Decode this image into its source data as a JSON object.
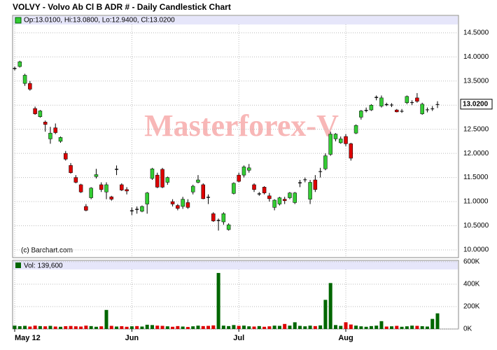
{
  "chart_data": {
    "type": "candlestick",
    "title": "VOLVY - Volvo Ab Cl B ADR # - Daily Candlestick Chart",
    "ohlc_header": "Op:13.0100, Hi:13.0800, Lo:12.9400, Cl:13.0200",
    "volume_header": "Vol: 139,600",
    "watermark": "Masterforex-V",
    "credit": "(c) Barchart.com",
    "last_price": {
      "value": 13.02,
      "label": "13.0200"
    },
    "up_color": "#33cc33",
    "down_color": "#dd0000",
    "volume_up_color": "#006600",
    "categories": [
      "May 12",
      null,
      null,
      null,
      null,
      null,
      null,
      null,
      null,
      null,
      null,
      null,
      null,
      null,
      null,
      null,
      null,
      null,
      null,
      null,
      null,
      null,
      null,
      "Jun",
      null,
      null,
      null,
      null,
      null,
      null,
      null,
      null,
      null,
      null,
      null,
      null,
      null,
      null,
      null,
      null,
      null,
      null,
      null,
      null,
      "Jul",
      null,
      null,
      null,
      null,
      null,
      null,
      null,
      null,
      null,
      null,
      null,
      null,
      null,
      null,
      null,
      null,
      null,
      null,
      null,
      null,
      "Aug",
      null,
      null,
      null,
      null,
      null,
      null,
      null,
      null,
      null,
      null,
      null,
      null,
      null,
      null,
      null,
      null,
      null,
      null
    ],
    "open": [
      13.75,
      13.8,
      13.45,
      13.45,
      12.93,
      12.76,
      12.65,
      12.3,
      12.53,
      12.25,
      12.0,
      11.75,
      11.5,
      11.35,
      10.9,
      11.08,
      11.52,
      11.35,
      11.2,
      11.1,
      11.66,
      11.35,
      11.25,
      10.8,
      10.85,
      10.8,
      10.95,
      11.48,
      11.55,
      11.67,
      11.4,
      11.0,
      10.92,
      10.9,
      10.98,
      11.2,
      11.4,
      11.35,
      11.1,
      10.75,
      10.6,
      10.58,
      10.42,
      11.17,
      11.55,
      11.55,
      11.65,
      11.35,
      11.15,
      11.3,
      11.12,
      10.88,
      10.95,
      11.05,
      11.08,
      10.98,
      11.38,
      11.45,
      11.05,
      11.45,
      11.62,
      11.68,
      11.98,
      12.3,
      12.22,
      12.35,
      12.2,
      12.42,
      12.75,
      12.88,
      12.9,
      13.15,
      12.98,
      13.02,
      13.0,
      12.9,
      12.88,
      13.05,
      13.05,
      13.15,
      12.82,
      12.9,
      12.92,
      13.01
    ],
    "high": [
      13.8,
      13.92,
      13.65,
      13.5,
      12.97,
      12.9,
      12.68,
      12.55,
      12.62,
      12.35,
      12.05,
      11.8,
      11.55,
      11.37,
      10.95,
      11.3,
      11.68,
      11.4,
      11.4,
      11.12,
      11.75,
      11.38,
      11.3,
      10.88,
      10.9,
      10.92,
      11.2,
      11.7,
      11.6,
      11.7,
      11.52,
      11.05,
      10.95,
      11.1,
      11.05,
      11.35,
      11.55,
      11.38,
      11.15,
      10.78,
      10.65,
      10.78,
      10.55,
      11.4,
      11.6,
      11.75,
      11.78,
      11.38,
      11.2,
      11.32,
      11.18,
      11.05,
      11.1,
      11.1,
      11.2,
      11.2,
      11.45,
      11.5,
      11.45,
      11.55,
      11.7,
      12.0,
      12.45,
      12.42,
      12.35,
      12.4,
      12.22,
      12.6,
      12.9,
      12.95,
      13.02,
      13.2,
      13.2,
      13.05,
      13.04,
      12.92,
      12.92,
      13.2,
      13.1,
      13.25,
      13.05,
      12.95,
      12.98,
      13.08
    ],
    "low": [
      13.72,
      13.78,
      13.4,
      13.3,
      12.8,
      12.74,
      12.45,
      12.2,
      12.4,
      12.22,
      11.85,
      11.58,
      11.38,
      11.18,
      10.8,
      11.05,
      11.48,
      11.2,
      11.05,
      11.02,
      11.55,
      11.22,
      11.15,
      10.72,
      10.75,
      10.78,
      10.75,
      11.45,
      11.28,
      11.28,
      11.35,
      10.9,
      10.82,
      10.85,
      10.85,
      11.15,
      11.38,
      11.05,
      10.95,
      10.58,
      10.4,
      10.52,
      10.4,
      11.15,
      11.4,
      11.5,
      11.6,
      11.2,
      11.12,
      11.15,
      11.0,
      10.82,
      10.92,
      10.95,
      11.05,
      10.95,
      11.3,
      11.4,
      10.95,
      11.2,
      11.5,
      11.65,
      11.95,
      12.25,
      12.2,
      12.15,
      11.85,
      12.4,
      12.7,
      12.85,
      12.88,
      13.1,
      12.95,
      12.98,
      12.96,
      12.85,
      12.84,
      13.02,
      13.0,
      13.05,
      12.8,
      12.85,
      12.88,
      12.94
    ],
    "close": [
      13.77,
      13.9,
      13.62,
      13.33,
      12.82,
      12.88,
      12.6,
      12.42,
      12.43,
      12.33,
      11.88,
      11.6,
      11.4,
      11.2,
      10.82,
      11.28,
      11.56,
      11.25,
      11.35,
      11.05,
      11.68,
      11.24,
      11.22,
      10.82,
      10.83,
      10.9,
      11.18,
      11.68,
      11.3,
      11.3,
      11.5,
      10.95,
      10.86,
      11.05,
      10.88,
      11.32,
      11.45,
      11.06,
      11.08,
      10.6,
      10.62,
      10.75,
      10.52,
      11.38,
      11.42,
      11.72,
      11.7,
      11.25,
      11.17,
      11.18,
      11.06,
      11.03,
      11.08,
      11.02,
      11.18,
      11.18,
      11.4,
      11.46,
      11.4,
      11.25,
      11.63,
      11.95,
      12.4,
      12.4,
      12.3,
      12.2,
      11.9,
      12.58,
      12.88,
      12.9,
      13.0,
      13.17,
      13.15,
      13.0,
      13.01,
      12.86,
      12.88,
      13.18,
      13.06,
      13.08,
      13.02,
      12.91,
      12.93,
      13.02
    ],
    "volume": [
      30000,
      25000,
      28000,
      22000,
      30000,
      26000,
      24000,
      28000,
      22000,
      20000,
      25000,
      27000,
      24000,
      22000,
      30000,
      26000,
      20000,
      24000,
      170000,
      28000,
      22000,
      25000,
      20000,
      24000,
      26000,
      22000,
      38000,
      35000,
      30000,
      28000,
      24000,
      20000,
      26000,
      22000,
      18000,
      24000,
      30000,
      26000,
      28000,
      32000,
      500000,
      30000,
      26000,
      35000,
      28000,
      30000,
      24000,
      22000,
      26000,
      20000,
      24000,
      30000,
      28000,
      45000,
      30000,
      60000,
      28000,
      24000,
      30000,
      26000,
      32000,
      260000,
      410000,
      35000,
      28000,
      60000,
      40000,
      30000,
      24000,
      20000,
      26000,
      30000,
      70000,
      22000,
      24000,
      28000,
      20000,
      24000,
      30000,
      28000,
      25000,
      22000,
      90000,
      139600
    ],
    "ylim": [
      9.84,
      14.86
    ],
    "yticks": [
      {
        "value": 10.0,
        "label": "10.0000"
      },
      {
        "value": 10.5,
        "label": "10.5000"
      },
      {
        "value": 11.0,
        "label": "11.0000"
      },
      {
        "value": 11.5,
        "label": "11.5000"
      },
      {
        "value": 12.0,
        "label": "12.0000"
      },
      {
        "value": 12.5,
        "label": "12.5000"
      },
      {
        "value": 13.0,
        "label": "13.0000"
      },
      {
        "value": 13.5,
        "label": "13.5000"
      },
      {
        "value": 14.0,
        "label": "14.0000"
      },
      {
        "value": 14.5,
        "label": "14.5000"
      }
    ],
    "y2lim": [
      0,
      612000
    ],
    "y2ticks": [
      {
        "value": 0,
        "label": "0K"
      },
      {
        "value": 200000,
        "label": "200K"
      },
      {
        "value": 400000,
        "label": "400K"
      },
      {
        "value": 600000,
        "label": "600K"
      }
    ],
    "grid": true
  }
}
